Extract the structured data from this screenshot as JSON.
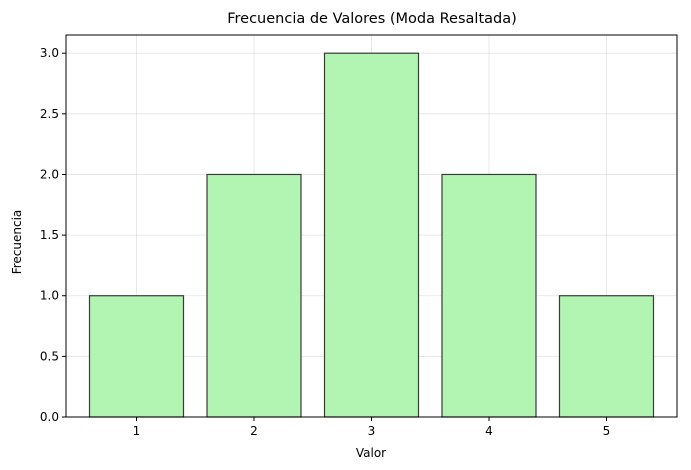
{
  "chart_data": {
    "type": "bar",
    "title": "Frecuencia de Valores (Moda Resaltada)",
    "xlabel": "Valor",
    "ylabel": "Frecuencia",
    "categories": [
      "1",
      "2",
      "3",
      "4",
      "5"
    ],
    "values": [
      1,
      2,
      3,
      2,
      1
    ],
    "ylim": [
      0,
      3.15
    ],
    "yticks": [
      "0.0",
      "0.5",
      "1.0",
      "1.5",
      "2.0",
      "2.5",
      "3.0"
    ],
    "grid": true,
    "bar_color": "#b2f5b2",
    "bar_edge_color": "#3a3a3a"
  }
}
